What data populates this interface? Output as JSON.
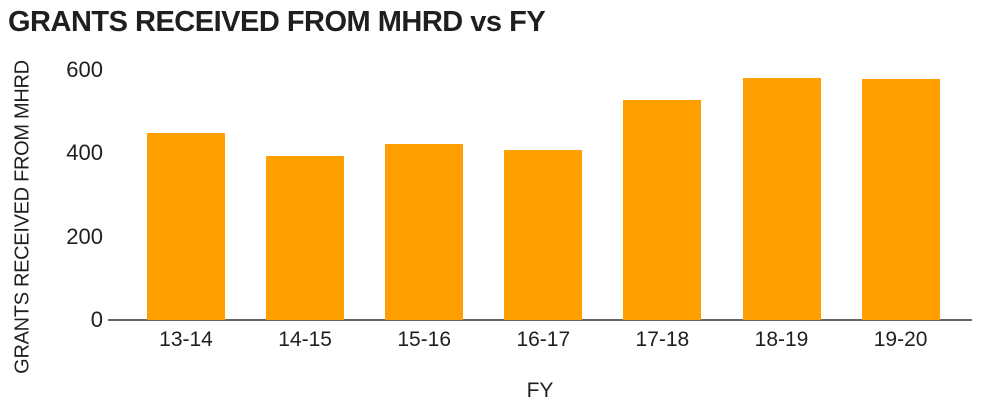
{
  "title": "GRANTS RECEIVED FROM MHRD vs FY",
  "colors": {
    "bar": "#FF9F00",
    "axis_line": "#666666",
    "text": "#1F1F1F",
    "background": "#FFFFFF"
  },
  "chart_data": {
    "type": "bar",
    "title": "GRANTS RECEIVED FROM MHRD vs FY",
    "categories": [
      "13-14",
      "14-15",
      "15-16",
      "16-17",
      "17-18",
      "18-19",
      "19-20"
    ],
    "values": [
      448,
      394,
      423,
      409,
      527,
      582,
      578
    ],
    "xlabel": "FY",
    "ylabel": "GRANTS RECEIVED FROM MHRD",
    "ylim": [
      0,
      600
    ],
    "yticks": [
      0,
      200,
      400,
      600
    ],
    "grid": false,
    "legend": false,
    "bar_color": "#FF9F00"
  }
}
